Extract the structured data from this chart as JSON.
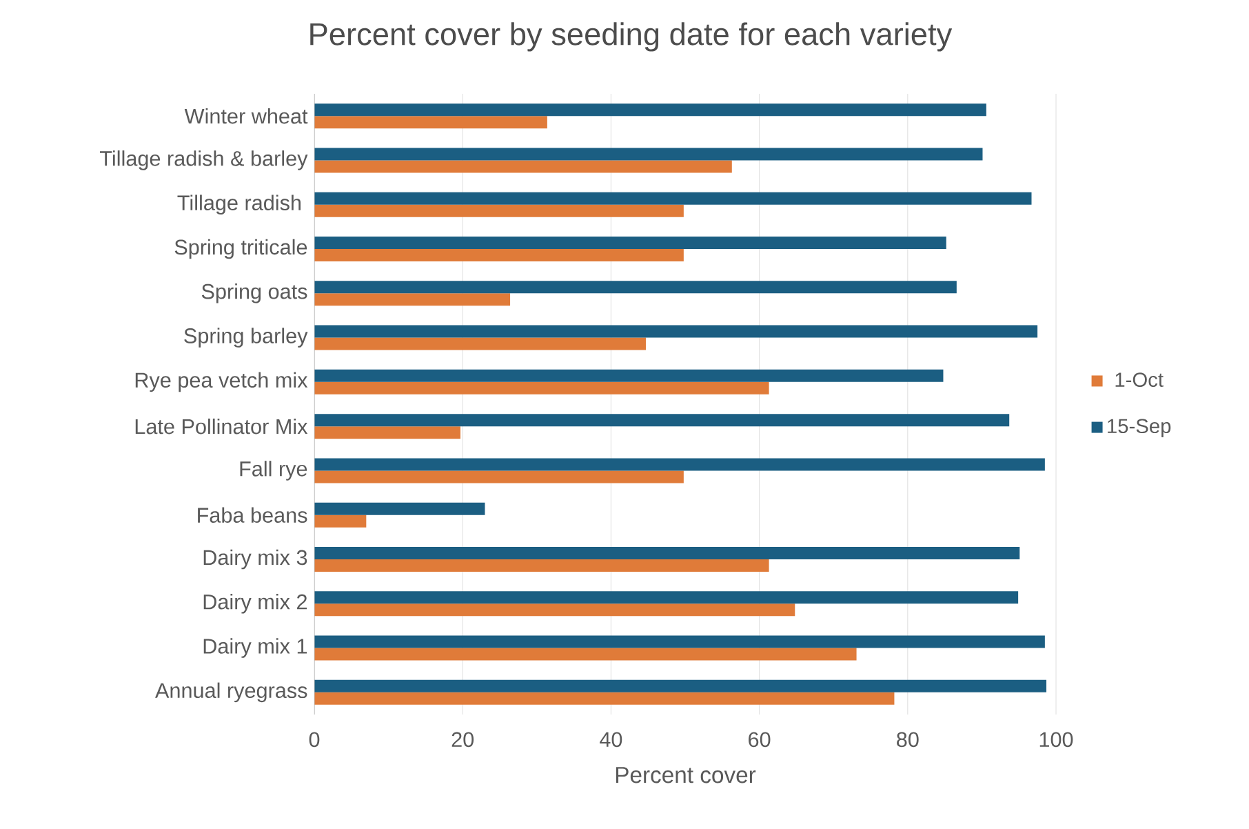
{
  "chart_data": {
    "type": "bar",
    "orientation": "horizontal",
    "title": "Percent cover by seeding date for each variety",
    "xlabel": "Percent cover",
    "categories": [
      "Winter wheat",
      "Tillage radish & barley",
      "Tillage radish ",
      "Spring triticale",
      "Spring oats",
      "Spring barley",
      "Rye pea vetch mix",
      "Late Pollinator Mix",
      "Fall rye",
      "Faba beans",
      "Dairy mix 3",
      "Dairy mix 2",
      "Dairy mix 1",
      "Annual ryegrass"
    ],
    "series": [
      {
        "name": "1-Oct",
        "color": "#e07b39",
        "values": [
          31.4,
          56.3,
          49.8,
          49.8,
          26.4,
          44.7,
          61.3,
          19.7,
          49.8,
          7.0,
          61.3,
          64.8,
          73.1,
          78.2
        ]
      },
      {
        "name": "15-Sep",
        "color": "#1b5e82",
        "values": [
          90.6,
          90.1,
          96.7,
          85.2,
          86.6,
          97.5,
          84.8,
          93.7,
          98.5,
          23.0,
          95.1,
          94.9,
          98.5,
          98.7
        ]
      }
    ],
    "xlim": [
      0,
      100
    ],
    "xticks": [
      0,
      20,
      40,
      60,
      80,
      100
    ],
    "grid": "x",
    "legend": "right"
  }
}
